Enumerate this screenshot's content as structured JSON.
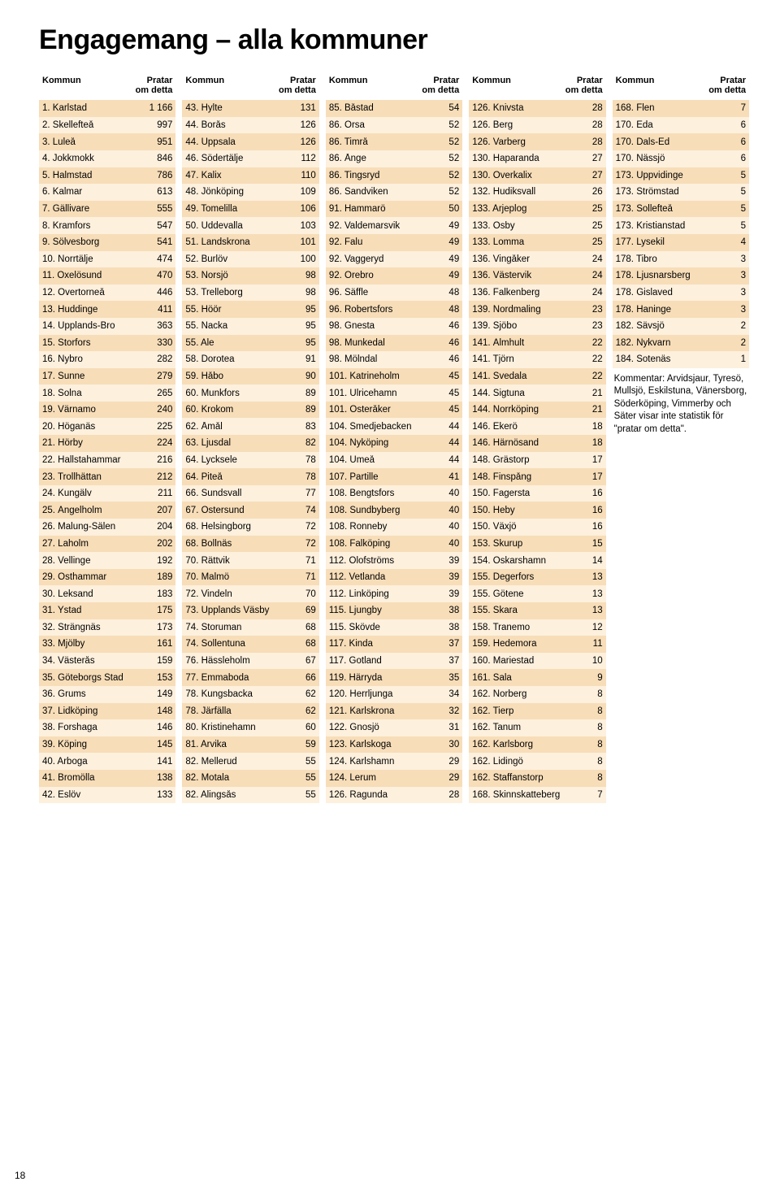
{
  "title": "Engagemang – alla kommuner",
  "page_number": "18",
  "colors": {
    "row_alt1": "#f7ddb8",
    "row_alt2": "#fdf0dd",
    "text": "#000000",
    "background": "#ffffff"
  },
  "header": {
    "kommun": "Kommun",
    "value": "Pratar\nom detta"
  },
  "comment": "Kommentar: Arvidsjaur, Tyresö, Mullsjö, Eskilstuna, Vänersborg, Söderköping, Vimmerby och Säter visar inte statistik för \"pratar om detta\".",
  "columns": [
    [
      {
        "rank": "1",
        "name": "Karlstad",
        "val": "1 166"
      },
      {
        "rank": "2",
        "name": "Skellefteå",
        "val": "997"
      },
      {
        "rank": "3",
        "name": "Luleå",
        "val": "951"
      },
      {
        "rank": "4",
        "name": "Jokkmokk",
        "val": "846"
      },
      {
        "rank": "5",
        "name": "Halmstad",
        "val": "786"
      },
      {
        "rank": "6",
        "name": "Kalmar",
        "val": "613"
      },
      {
        "rank": "7",
        "name": "Gällivare",
        "val": "555"
      },
      {
        "rank": "8",
        "name": "Kramfors",
        "val": "547"
      },
      {
        "rank": "9",
        "name": "Sölvesborg",
        "val": "541"
      },
      {
        "rank": "10",
        "name": "Norrtälje",
        "val": "474"
      },
      {
        "rank": "11",
        "name": "Oxelösund",
        "val": "470"
      },
      {
        "rank": "12",
        "name": "Övertorneå",
        "val": "446"
      },
      {
        "rank": "13",
        "name": "Huddinge",
        "val": "411"
      },
      {
        "rank": "14",
        "name": "Upplands-Bro",
        "val": "363"
      },
      {
        "rank": "15",
        "name": "Storfors",
        "val": "330"
      },
      {
        "rank": "16",
        "name": "Nybro",
        "val": "282"
      },
      {
        "rank": "17",
        "name": "Sunne",
        "val": "279"
      },
      {
        "rank": "18",
        "name": "Solna",
        "val": "265"
      },
      {
        "rank": "19",
        "name": "Värnamo",
        "val": "240"
      },
      {
        "rank": "20",
        "name": "Höganäs",
        "val": "225"
      },
      {
        "rank": "21",
        "name": "Hörby",
        "val": "224"
      },
      {
        "rank": "22",
        "name": "Hallstahammar",
        "val": "216"
      },
      {
        "rank": "23",
        "name": "Trollhättan",
        "val": "212"
      },
      {
        "rank": "24",
        "name": "Kungälv",
        "val": "211"
      },
      {
        "rank": "25",
        "name": "Ängelholm",
        "val": "207"
      },
      {
        "rank": "26",
        "name": "Malung-Sälen",
        "val": "204"
      },
      {
        "rank": "27",
        "name": "Laholm",
        "val": "202"
      },
      {
        "rank": "28",
        "name": "Vellinge",
        "val": "192"
      },
      {
        "rank": "29",
        "name": "Östhammar",
        "val": "189"
      },
      {
        "rank": "30",
        "name": "Leksand",
        "val": "183"
      },
      {
        "rank": "31",
        "name": "Ystad",
        "val": "175"
      },
      {
        "rank": "32",
        "name": "Strängnäs",
        "val": "173"
      },
      {
        "rank": "33",
        "name": "Mjölby",
        "val": "161"
      },
      {
        "rank": "34",
        "name": "Västerås",
        "val": "159"
      },
      {
        "rank": "35",
        "name": "Göteborgs Stad",
        "val": "153"
      },
      {
        "rank": "36",
        "name": "Grums",
        "val": "149"
      },
      {
        "rank": "37",
        "name": "Lidköping",
        "val": "148"
      },
      {
        "rank": "38",
        "name": "Forshaga",
        "val": "146"
      },
      {
        "rank": "39",
        "name": "Köping",
        "val": "145"
      },
      {
        "rank": "40",
        "name": "Arboga",
        "val": "141"
      },
      {
        "rank": "41",
        "name": "Bromölla",
        "val": "138"
      },
      {
        "rank": "42",
        "name": "Eslöv",
        "val": "133"
      }
    ],
    [
      {
        "rank": "43",
        "name": "Hylte",
        "val": "131"
      },
      {
        "rank": "44",
        "name": "Borås",
        "val": "126"
      },
      {
        "rank": "44",
        "name": "Uppsala",
        "val": "126"
      },
      {
        "rank": "46",
        "name": "Södertälje",
        "val": "112"
      },
      {
        "rank": "47",
        "name": "Kalix",
        "val": "110"
      },
      {
        "rank": "48",
        "name": "Jönköping",
        "val": "109"
      },
      {
        "rank": "49",
        "name": "Tomelilla",
        "val": "106"
      },
      {
        "rank": "50",
        "name": "Uddevalla",
        "val": "103"
      },
      {
        "rank": "51",
        "name": "Landskrona",
        "val": "101"
      },
      {
        "rank": "52",
        "name": "Burlöv",
        "val": "100"
      },
      {
        "rank": "53",
        "name": "Norsjö",
        "val": "98"
      },
      {
        "rank": "53",
        "name": "Trelleborg",
        "val": "98"
      },
      {
        "rank": "55",
        "name": "Höör",
        "val": "95"
      },
      {
        "rank": "55",
        "name": "Nacka",
        "val": "95"
      },
      {
        "rank": "55",
        "name": "Ale",
        "val": "95"
      },
      {
        "rank": "58",
        "name": "Dorotea",
        "val": "91"
      },
      {
        "rank": "59",
        "name": "Håbo",
        "val": "90"
      },
      {
        "rank": "60",
        "name": "Munkfors",
        "val": "89"
      },
      {
        "rank": "60",
        "name": "Krokom",
        "val": "89"
      },
      {
        "rank": "62",
        "name": "Åmål",
        "val": "83"
      },
      {
        "rank": "63",
        "name": "Ljusdal",
        "val": "82"
      },
      {
        "rank": "64",
        "name": "Lycksele",
        "val": "78"
      },
      {
        "rank": "64",
        "name": "Piteå",
        "val": "78"
      },
      {
        "rank": "66",
        "name": "Sundsvall",
        "val": "77"
      },
      {
        "rank": "67",
        "name": "Östersund",
        "val": "74"
      },
      {
        "rank": "68",
        "name": "Helsingborg",
        "val": "72"
      },
      {
        "rank": "68",
        "name": "Bollnäs",
        "val": "72"
      },
      {
        "rank": "70",
        "name": "Rättvik",
        "val": "71"
      },
      {
        "rank": "70",
        "name": "Malmö",
        "val": "71"
      },
      {
        "rank": "72",
        "name": "Vindeln",
        "val": "70"
      },
      {
        "rank": "73",
        "name": "Upplands Väsby",
        "val": "69"
      },
      {
        "rank": "74",
        "name": "Storuman",
        "val": "68"
      },
      {
        "rank": "74",
        "name": "Sollentuna",
        "val": "68"
      },
      {
        "rank": "76",
        "name": "Hässleholm",
        "val": "67"
      },
      {
        "rank": "77",
        "name": "Emmaboda",
        "val": "66"
      },
      {
        "rank": "78",
        "name": "Kungsbacka",
        "val": "62"
      },
      {
        "rank": "78",
        "name": "Järfälla",
        "val": "62"
      },
      {
        "rank": "80",
        "name": "Kristinehamn",
        "val": "60"
      },
      {
        "rank": "81",
        "name": "Arvika",
        "val": "59"
      },
      {
        "rank": "82",
        "name": "Mellerud",
        "val": "55"
      },
      {
        "rank": "82",
        "name": "Motala",
        "val": "55"
      },
      {
        "rank": "82",
        "name": "Alingsås",
        "val": "55"
      }
    ],
    [
      {
        "rank": "85",
        "name": "Båstad",
        "val": "54"
      },
      {
        "rank": "86",
        "name": "Orsa",
        "val": "52"
      },
      {
        "rank": "86",
        "name": "Timrå",
        "val": "52"
      },
      {
        "rank": "86",
        "name": "Ånge",
        "val": "52"
      },
      {
        "rank": "86",
        "name": "Tingsryd",
        "val": "52"
      },
      {
        "rank": "86",
        "name": "Sandviken",
        "val": "52"
      },
      {
        "rank": "91",
        "name": "Hammarö",
        "val": "50"
      },
      {
        "rank": "92",
        "name": "Valdemarsvik",
        "val": "49"
      },
      {
        "rank": "92",
        "name": "Falu",
        "val": "49"
      },
      {
        "rank": "92",
        "name": "Vaggeryd",
        "val": "49"
      },
      {
        "rank": "92",
        "name": "Örebro",
        "val": "49"
      },
      {
        "rank": "96",
        "name": "Säffle",
        "val": "48"
      },
      {
        "rank": "96",
        "name": "Robertsfors",
        "val": "48"
      },
      {
        "rank": "98",
        "name": "Gnesta",
        "val": "46"
      },
      {
        "rank": "98",
        "name": "Munkedal",
        "val": "46"
      },
      {
        "rank": "98",
        "name": "Mölndal",
        "val": "46"
      },
      {
        "rank": "101",
        "name": "Katrineholm",
        "val": "45"
      },
      {
        "rank": "101",
        "name": "Ulricehamn",
        "val": "45"
      },
      {
        "rank": "101",
        "name": "Österåker",
        "val": "45"
      },
      {
        "rank": "104",
        "name": "Smedjebacken",
        "val": "44"
      },
      {
        "rank": "104",
        "name": "Nyköping",
        "val": "44"
      },
      {
        "rank": "104",
        "name": "Umeå",
        "val": "44"
      },
      {
        "rank": "107",
        "name": "Partille",
        "val": "41"
      },
      {
        "rank": "108",
        "name": "Bengtsfors",
        "val": "40"
      },
      {
        "rank": "108",
        "name": "Sundbyberg",
        "val": "40"
      },
      {
        "rank": "108",
        "name": "Ronneby",
        "val": "40"
      },
      {
        "rank": "108",
        "name": "Falköping",
        "val": "40"
      },
      {
        "rank": "112",
        "name": "Olofströms",
        "val": "39"
      },
      {
        "rank": "112",
        "name": "Vetlanda",
        "val": "39"
      },
      {
        "rank": "112",
        "name": "Linköping",
        "val": "39"
      },
      {
        "rank": "115",
        "name": "Ljungby",
        "val": "38"
      },
      {
        "rank": "115",
        "name": "Skövde",
        "val": "38"
      },
      {
        "rank": "117",
        "name": "Kinda",
        "val": "37"
      },
      {
        "rank": "117",
        "name": "Gotland",
        "val": "37"
      },
      {
        "rank": "119",
        "name": "Härryda",
        "val": "35"
      },
      {
        "rank": "120",
        "name": "Herrljunga",
        "val": "34"
      },
      {
        "rank": "121",
        "name": "Karlskrona",
        "val": "32"
      },
      {
        "rank": "122",
        "name": "Gnosjö",
        "val": "31"
      },
      {
        "rank": "123",
        "name": "Karlskoga",
        "val": "30"
      },
      {
        "rank": "124",
        "name": "Karlshamn",
        "val": "29"
      },
      {
        "rank": "124",
        "name": "Lerum",
        "val": "29"
      },
      {
        "rank": "126",
        "name": "Ragunda",
        "val": "28"
      }
    ],
    [
      {
        "rank": "126",
        "name": "Knivsta",
        "val": "28"
      },
      {
        "rank": "126",
        "name": "Berg",
        "val": "28"
      },
      {
        "rank": "126",
        "name": "Varberg",
        "val": "28"
      },
      {
        "rank": "130",
        "name": "Haparanda",
        "val": "27"
      },
      {
        "rank": "130",
        "name": "Överkalix",
        "val": "27"
      },
      {
        "rank": "132",
        "name": "Hudiksvall",
        "val": "26"
      },
      {
        "rank": "133",
        "name": "Arjeplog",
        "val": "25"
      },
      {
        "rank": "133",
        "name": "Osby",
        "val": "25"
      },
      {
        "rank": "133",
        "name": "Lomma",
        "val": "25"
      },
      {
        "rank": "136",
        "name": "Vingåker",
        "val": "24"
      },
      {
        "rank": "136",
        "name": "Västervik",
        "val": "24"
      },
      {
        "rank": "136",
        "name": "Falkenberg",
        "val": "24"
      },
      {
        "rank": "139",
        "name": "Nordmaling",
        "val": "23"
      },
      {
        "rank": "139",
        "name": "Sjöbo",
        "val": "23"
      },
      {
        "rank": "141",
        "name": "Älmhult",
        "val": "22"
      },
      {
        "rank": "141",
        "name": "Tjörn",
        "val": "22"
      },
      {
        "rank": "141",
        "name": "Svedala",
        "val": "22"
      },
      {
        "rank": "144",
        "name": "Sigtuna",
        "val": "21"
      },
      {
        "rank": "144",
        "name": "Norrköping",
        "val": "21"
      },
      {
        "rank": "146",
        "name": "Ekerö",
        "val": "18"
      },
      {
        "rank": "146",
        "name": "Härnösand",
        "val": "18"
      },
      {
        "rank": "148",
        "name": "Grästorp",
        "val": "17"
      },
      {
        "rank": "148",
        "name": "Finspång",
        "val": "17"
      },
      {
        "rank": "150",
        "name": "Fagersta",
        "val": "16"
      },
      {
        "rank": "150",
        "name": "Heby",
        "val": "16"
      },
      {
        "rank": "150",
        "name": "Växjö",
        "val": "16"
      },
      {
        "rank": "153",
        "name": "Skurup",
        "val": "15"
      },
      {
        "rank": "154",
        "name": "Oskarshamn",
        "val": "14"
      },
      {
        "rank": "155",
        "name": "Degerfors",
        "val": "13"
      },
      {
        "rank": "155",
        "name": "Götene",
        "val": "13"
      },
      {
        "rank": "155",
        "name": "Skara",
        "val": "13"
      },
      {
        "rank": "158",
        "name": "Tranemo",
        "val": "12"
      },
      {
        "rank": "159",
        "name": "Hedemora",
        "val": "11"
      },
      {
        "rank": "160",
        "name": "Mariestad",
        "val": "10"
      },
      {
        "rank": "161",
        "name": "Sala",
        "val": "9"
      },
      {
        "rank": "162",
        "name": "Norberg",
        "val": "8"
      },
      {
        "rank": "162",
        "name": "Tierp",
        "val": "8"
      },
      {
        "rank": "162",
        "name": "Tanum",
        "val": "8"
      },
      {
        "rank": "162",
        "name": "Karlsborg",
        "val": "8"
      },
      {
        "rank": "162",
        "name": "Lidingö",
        "val": "8"
      },
      {
        "rank": "162",
        "name": "Staffanstorp",
        "val": "8"
      },
      {
        "rank": "168",
        "name": "Skinnskatteberg",
        "val": "7"
      }
    ],
    [
      {
        "rank": "168",
        "name": "Flen",
        "val": "7"
      },
      {
        "rank": "170",
        "name": "Eda",
        "val": "6"
      },
      {
        "rank": "170",
        "name": "Dals-Ed",
        "val": "6"
      },
      {
        "rank": "170",
        "name": "Nässjö",
        "val": "6"
      },
      {
        "rank": "173",
        "name": "Uppvidinge",
        "val": "5"
      },
      {
        "rank": "173",
        "name": "Strömstad",
        "val": "5"
      },
      {
        "rank": "173",
        "name": "Sollefteå",
        "val": "5"
      },
      {
        "rank": "173",
        "name": "Kristianstad",
        "val": "5"
      },
      {
        "rank": "177",
        "name": "Lysekil",
        "val": "4"
      },
      {
        "rank": "178",
        "name": "Tibro",
        "val": "3"
      },
      {
        "rank": "178",
        "name": "Ljusnarsberg",
        "val": "3"
      },
      {
        "rank": "178",
        "name": "Gislaved",
        "val": "3"
      },
      {
        "rank": "178",
        "name": "Haninge",
        "val": "3"
      },
      {
        "rank": "182",
        "name": "Sävsjö",
        "val": "2"
      },
      {
        "rank": "182",
        "name": "Nykvarn",
        "val": "2"
      },
      {
        "rank": "184",
        "name": "Sotenäs",
        "val": "1"
      }
    ]
  ]
}
